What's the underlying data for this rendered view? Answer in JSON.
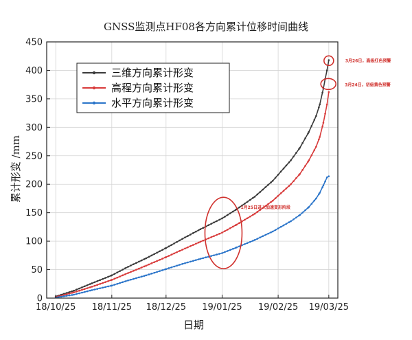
{
  "chart_data": {
    "type": "line",
    "title": "GNSS监测点HF08各方向累计位移时间曲线",
    "xlabel": "日期",
    "ylabel": "累计形变 /mm",
    "x_ticks": [
      "18/10/25",
      "18/11/25",
      "18/12/25",
      "19/01/25",
      "19/02/25",
      "19/03/25"
    ],
    "x_tick_days": [
      0,
      31,
      61,
      92,
      123,
      151
    ],
    "xlim": [
      -5,
      156
    ],
    "ylim": [
      0,
      450
    ],
    "y_ticks": [
      0,
      50,
      100,
      150,
      200,
      250,
      300,
      350,
      400,
      450
    ],
    "grid": true,
    "legend_position": "upper-left",
    "series": [
      {
        "name": "三维方向累计形变",
        "color": "#3a3a3a",
        "x": [
          0,
          10,
          20,
          31,
          40,
          50,
          61,
          70,
          80,
          92,
          100,
          110,
          120,
          130,
          135,
          140,
          144,
          146,
          148,
          149,
          150,
          151
        ],
        "y": [
          3,
          13,
          26,
          40,
          55,
          70,
          88,
          104,
          121,
          140,
          156,
          178,
          206,
          242,
          264,
          292,
          320,
          340,
          368,
          385,
          400,
          418
        ]
      },
      {
        "name": "高程方向累计形变",
        "color": "#d83a3a",
        "x": [
          0,
          10,
          20,
          31,
          40,
          50,
          61,
          70,
          80,
          92,
          100,
          110,
          120,
          130,
          135,
          140,
          144,
          146,
          148,
          149,
          150,
          151
        ],
        "y": [
          2,
          10,
          20,
          32,
          44,
          57,
          72,
          85,
          99,
          115,
          129,
          148,
          171,
          200,
          218,
          242,
          266,
          283,
          308,
          324,
          340,
          362
        ]
      },
      {
        "name": "水平方向累计形变",
        "color": "#2a74c9",
        "x": [
          0,
          10,
          20,
          31,
          40,
          50,
          61,
          70,
          80,
          92,
          100,
          110,
          120,
          130,
          135,
          140,
          144,
          146,
          148,
          149,
          150,
          151
        ],
        "y": [
          1,
          6,
          14,
          22,
          31,
          40,
          51,
          60,
          69,
          79,
          89,
          102,
          117,
          135,
          146,
          160,
          175,
          185,
          198,
          205,
          212,
          214
        ]
      }
    ],
    "annotations": [
      {
        "text": "3月26日，高级红色预警",
        "x": 151,
        "y": 417
      },
      {
        "text": "3月24日，初级黄色预警",
        "x": 150,
        "y": 370
      },
      {
        "text": "1月25日进入加速变形阶段",
        "x": 92,
        "y": 118
      }
    ]
  }
}
